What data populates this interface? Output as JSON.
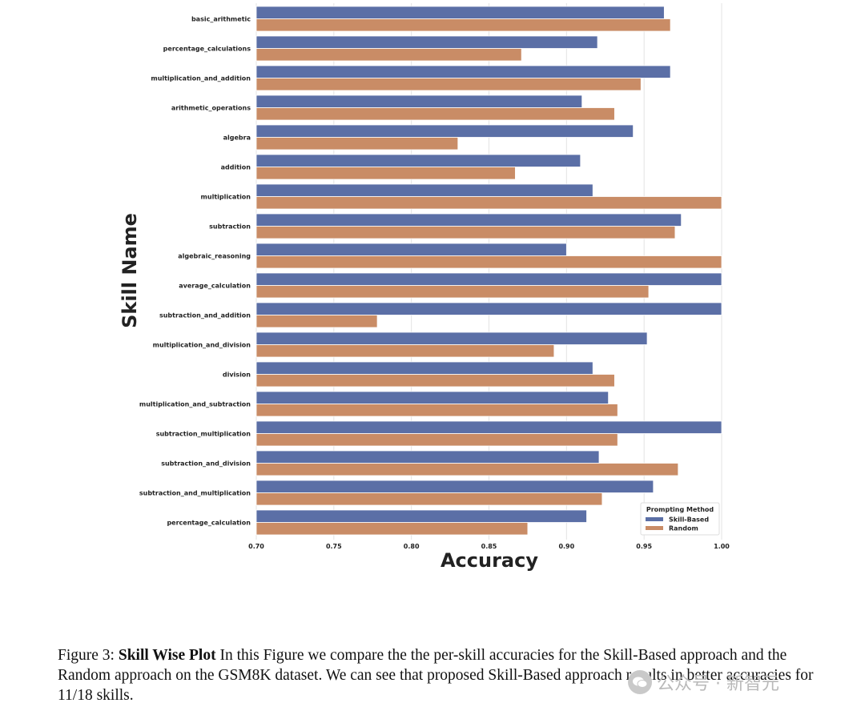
{
  "chart_data": {
    "type": "bar",
    "orientation": "horizontal",
    "xlabel": "Accuracy",
    "ylabel": "Skill Name",
    "xlim": [
      0.7,
      1.0
    ],
    "xticks": [
      "0.70",
      "0.75",
      "0.80",
      "0.85",
      "0.90",
      "0.95",
      "1.00"
    ],
    "grid": "vertical",
    "legend": {
      "title": "Prompting Method",
      "position": "bottom-right"
    },
    "categories": [
      "basic_arithmetic",
      "percentage_calculations",
      "multiplication_and_addition",
      "arithmetic_operations",
      "algebra",
      "addition",
      "multiplication",
      "subtraction",
      "algebraic_reasoning",
      "average_calculation",
      "subtraction_and_addition",
      "multiplication_and_division",
      "division",
      "multiplication_and_subtraction",
      "subtraction_multiplication",
      "subtraction_and_division",
      "subtraction_and_multiplication",
      "percentage_calculation"
    ],
    "series": [
      {
        "name": "Skill-Based",
        "color": "#5b6fa6",
        "values": [
          0.963,
          0.92,
          0.967,
          0.91,
          0.943,
          0.909,
          0.917,
          0.974,
          0.9,
          1.0,
          1.0,
          0.952,
          0.917,
          0.927,
          1.0,
          0.921,
          0.956,
          0.913
        ]
      },
      {
        "name": "Random",
        "color": "#c98c66",
        "values": [
          0.967,
          0.871,
          0.948,
          0.931,
          0.83,
          0.867,
          1.0,
          0.97,
          1.0,
          0.953,
          0.778,
          0.892,
          0.931,
          0.933,
          0.933,
          0.972,
          0.923,
          0.875
        ]
      }
    ]
  },
  "caption": {
    "label": "Figure 3:",
    "title": "Skill Wise Plot",
    "text": "In this Figure we compare the the per-skill accuracies for the Skill-Based approach and the Random approach on the GSM8K dataset. We can see that proposed Skill-Based approach results in better accuracies for 11/18 skills."
  },
  "watermark": {
    "text": "公众号 · 新智元"
  }
}
